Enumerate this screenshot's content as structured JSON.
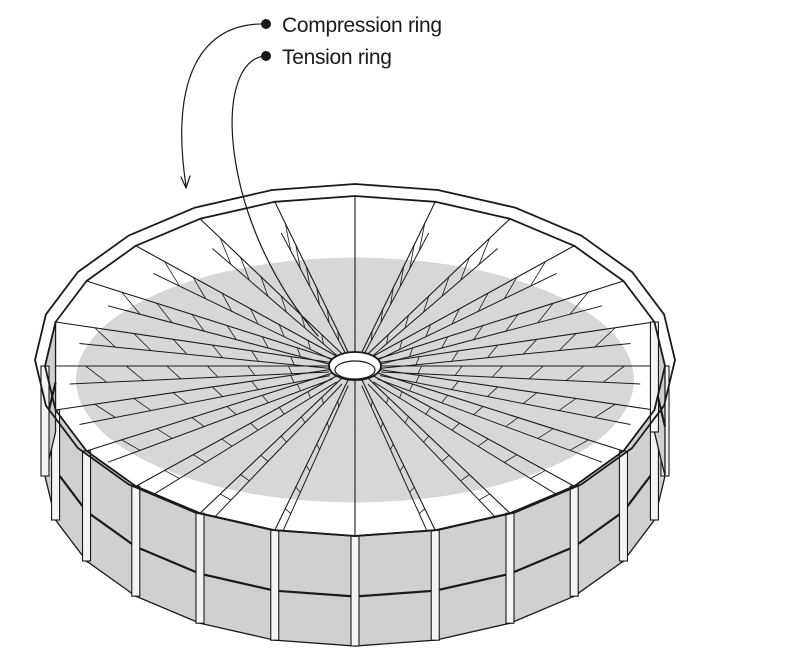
{
  "labels": {
    "compression": "Compression ring",
    "tension": "Tension ring"
  },
  "structure": {
    "radial_cables": 24,
    "wall_panels": 24,
    "colors": {
      "line": "#1a1a1a",
      "roof_fill": "#d7d7d7",
      "wall_fill": "#d0d0d0",
      "hub_fill": "#ffffff"
    }
  }
}
